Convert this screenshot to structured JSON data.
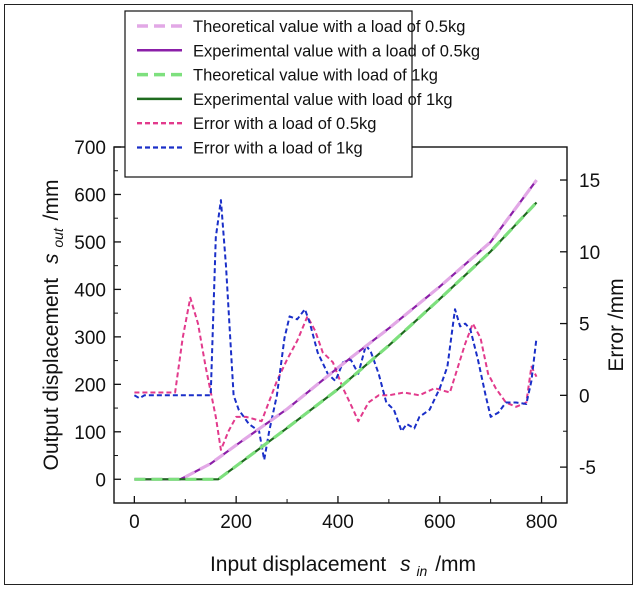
{
  "chart_data": {
    "type": "line",
    "xlabel_main": "Input displacement",
    "xlabel_symbol": "s",
    "xlabel_sub": "in",
    "xlabel_unit": "/mm",
    "ylabel_main": "Output displacement",
    "ylabel_symbol": "s",
    "ylabel_sub": "out",
    "ylabel_unit": "/mm",
    "y2label": "Error /mm",
    "xlim": [
      -40,
      850
    ],
    "ylim": [
      -50,
      700
    ],
    "y2lim": [
      -7.5,
      17.3
    ],
    "xticks": [
      "0",
      "200",
      "400",
      "600",
      "800"
    ],
    "xtick_values": [
      0,
      200,
      400,
      600,
      800
    ],
    "yticks": [
      "0",
      "100",
      "200",
      "300",
      "400",
      "500",
      "600",
      "700"
    ],
    "ytick_values": [
      0,
      100,
      200,
      300,
      400,
      500,
      600,
      700
    ],
    "y2ticks": [
      "-5",
      "0",
      "5",
      "10",
      "15"
    ],
    "y2tick_values": [
      -5,
      0,
      5,
      10,
      15
    ],
    "legend_position": "top",
    "series": [
      {
        "name": "Theoretical value with a load of 0.5kg",
        "axis": "left",
        "color": "#e2a8e6",
        "dash": "dashed",
        "x": [
          0,
          90,
          100,
          150,
          200,
          300,
          400,
          500,
          600,
          700,
          790
        ],
        "y": [
          0,
          0,
          5,
          33,
          72,
          148,
          235,
          318,
          406,
          500,
          630
        ]
      },
      {
        "name": "Experimental value with a load of 0.5kg",
        "axis": "left",
        "color": "#8b1fa8",
        "dash": "solid",
        "x": [
          0,
          90,
          100,
          150,
          200,
          300,
          400,
          500,
          600,
          700,
          790
        ],
        "y": [
          0,
          0,
          5,
          33,
          72,
          148,
          235,
          318,
          406,
          500,
          630
        ]
      },
      {
        "name": "Theoretical value with load of 1kg",
        "axis": "left",
        "color": "#7ee07e",
        "dash": "dashed",
        "x": [
          0,
          165,
          175,
          200,
          300,
          400,
          500,
          600,
          700,
          790
        ],
        "y": [
          0,
          0,
          8,
          28,
          108,
          190,
          282,
          380,
          480,
          583
        ]
      },
      {
        "name": "Experimental value with load of 1kg",
        "axis": "left",
        "color": "#1f6b1f",
        "dash": "solid",
        "x": [
          0,
          165,
          175,
          200,
          300,
          400,
          500,
          600,
          700,
          790
        ],
        "y": [
          0,
          0,
          8,
          28,
          108,
          190,
          282,
          380,
          480,
          583
        ]
      },
      {
        "name": "Error with a load of 0.5kg",
        "axis": "right",
        "color": "#e23a8c",
        "dash": "dotted",
        "x": [
          0,
          80,
          95,
          110,
          125,
          140,
          160,
          170,
          185,
          200,
          220,
          250,
          280,
          300,
          320,
          340,
          355,
          370,
          390,
          410,
          430,
          440,
          460,
          480,
          500,
          530,
          560,
          590,
          620,
          650,
          665,
          680,
          695,
          710,
          730,
          750,
          770,
          780,
          790
        ],
        "y": [
          0.2,
          0.2,
          4,
          6.8,
          5,
          2,
          -1.5,
          -3.8,
          -2.5,
          -1.5,
          -1.5,
          -1.8,
          1,
          2.5,
          3.8,
          5.5,
          4.5,
          3,
          2.3,
          0.5,
          -1,
          -1.8,
          -0.5,
          0,
          0,
          0.2,
          0,
          0.5,
          0.2,
          3.6,
          5,
          4,
          1.5,
          0.5,
          -0.5,
          -0.8,
          -0.5,
          2,
          1.3
        ]
      },
      {
        "name": "Error with a load of 1kg",
        "axis": "right",
        "color": "#1a2fc8",
        "dash": "dotted",
        "x": [
          0,
          10,
          20,
          150,
          160,
          170,
          180,
          195,
          205,
          225,
          245,
          255,
          265,
          280,
          295,
          305,
          320,
          335,
          345,
          360,
          380,
          395,
          410,
          425,
          440,
          455,
          465,
          480,
          495,
          510,
          525,
          535,
          550,
          560,
          580,
          600,
          615,
          630,
          640,
          650,
          660,
          675,
          690,
          700,
          715,
          730,
          750,
          770,
          780,
          790
        ],
        "y": [
          0,
          -0.2,
          0,
          0,
          11,
          13.6,
          9,
          0,
          -1,
          -2,
          -2.5,
          -4.5,
          -2.5,
          0,
          4,
          5.5,
          5.3,
          6,
          5,
          3,
          1.5,
          1,
          2.3,
          2.5,
          1.5,
          3.5,
          3,
          1.5,
          -0.5,
          -1,
          -2.5,
          -2,
          -2.3,
          -1.5,
          -1,
          0.5,
          2,
          6,
          4.8,
          5,
          4.6,
          2.5,
          0,
          -1.5,
          -1.2,
          -0.5,
          -0.5,
          -0.6,
          1,
          4
        ]
      }
    ]
  }
}
